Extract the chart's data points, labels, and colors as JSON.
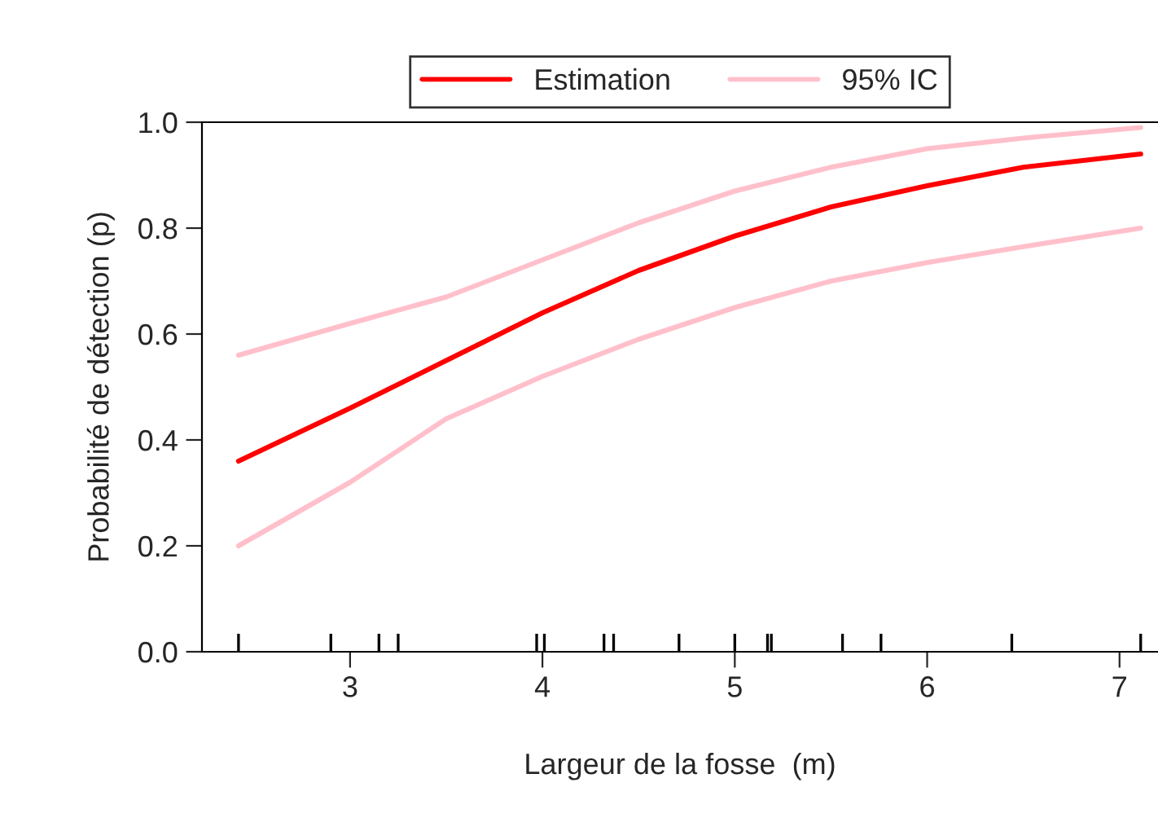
{
  "chart_data": {
    "type": "line",
    "xlabel": "Largeur de la fosse  (m)",
    "ylabel": "Probabilité de détection (p)",
    "xlim": [
      2.23,
      7.2
    ],
    "ylim": [
      0,
      1
    ],
    "xticks": [
      3,
      4,
      5,
      6,
      7
    ],
    "yticks": [
      {
        "value": 0,
        "label": "0.0"
      },
      {
        "value": 0.2,
        "label": "0.2"
      },
      {
        "value": 0.4,
        "label": "0.4"
      },
      {
        "value": 0.6,
        "label": "0.6"
      },
      {
        "value": 0.8,
        "label": "0.8"
      },
      {
        "value": 1,
        "label": "1.0"
      }
    ],
    "legend": "top",
    "grid": false,
    "series": [
      {
        "name": "Estimation",
        "color": "#ff0000",
        "x": [
          2.42,
          3.0,
          3.5,
          4.0,
          4.5,
          5.0,
          5.5,
          6.0,
          6.5,
          7.11
        ],
        "values": [
          0.36,
          0.46,
          0.55,
          0.64,
          0.72,
          0.785,
          0.84,
          0.88,
          0.915,
          0.94
        ]
      },
      {
        "name": "95% IC",
        "color": "#ffc0cb",
        "x": [
          2.42,
          3.0,
          3.5,
          4.0,
          4.5,
          5.0,
          5.5,
          6.0,
          6.5,
          7.11
        ],
        "values": [
          0.56,
          0.62,
          0.67,
          0.74,
          0.81,
          0.87,
          0.915,
          0.95,
          0.97,
          0.99
        ]
      },
      {
        "color": "#ffc0cb",
        "x": [
          2.42,
          3.0,
          3.5,
          4.0,
          4.5,
          5.0,
          5.5,
          6.0,
          6.5,
          7.11
        ],
        "values": [
          0.2,
          0.32,
          0.44,
          0.52,
          0.59,
          0.65,
          0.7,
          0.735,
          0.765,
          0.8
        ]
      },
      {
        "type": "bar",
        "color": "#000000",
        "x": [
          2.42,
          2.9,
          3.15,
          3.25,
          3.97,
          4.01,
          4.32,
          4.37,
          4.71,
          5.0,
          5.17,
          5.19,
          5.56,
          5.76,
          6.44,
          7.11
        ],
        "values": [
          0.034,
          0.034,
          0.034,
          0.034,
          0.034,
          0.034,
          0.034,
          0.034,
          0.034,
          0.034,
          0.034,
          0.034,
          0.034,
          0.034,
          0.034,
          0.034
        ]
      }
    ]
  }
}
